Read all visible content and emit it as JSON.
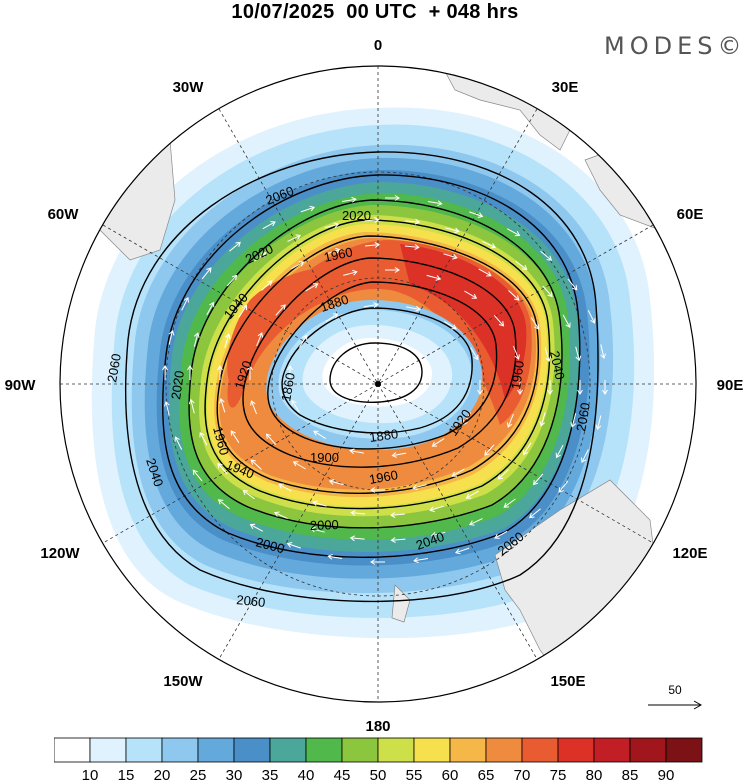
{
  "title": "10/07/2025  00 UTC  + 048 hrs",
  "logo": "MODES©",
  "longitude_labels": {
    "n0": "0",
    "e30": "30E",
    "e60": "60E",
    "e90": "90E",
    "e120": "120E",
    "e150": "150E",
    "s180": "180",
    "w150": "150W",
    "w120": "120W",
    "w90": "90W",
    "w60": "60W",
    "w30": "30W"
  },
  "contour_labels": {
    "c1": "2060",
    "c2": "2060",
    "c3": "2060",
    "c4": "2060",
    "c5": "2060",
    "c6": "2040",
    "c7": "2040",
    "c8": "2040",
    "c9": "2020",
    "c10": "2020",
    "c11": "2020",
    "c12": "2000",
    "c13": "2000",
    "c14": "1960",
    "c15": "1960",
    "c16": "1960",
    "c17": "1960",
    "c18": "1940",
    "c19": "1940",
    "c20": "1920",
    "c21": "1920",
    "c22": "1900",
    "c23": "1880",
    "c24": "1880",
    "c25": "1860"
  },
  "vector_reference": "50",
  "colorbar": {
    "labels": [
      "10",
      "15",
      "20",
      "25",
      "30",
      "35",
      "40",
      "45",
      "50",
      "55",
      "60",
      "65",
      "70",
      "75",
      "80",
      "85",
      "90"
    ],
    "colors": [
      "#ffffff",
      "#dff2fd",
      "#b7e3fa",
      "#8fc8ee",
      "#64a9dc",
      "#4a8fc8",
      "#4aa79a",
      "#51b84c",
      "#8cc63f",
      "#cde04a",
      "#f6e04d",
      "#f5b748",
      "#ef8b3e",
      "#e95c31",
      "#dc3127",
      "#c11f25",
      "#a0161c",
      "#7c1215"
    ]
  }
}
